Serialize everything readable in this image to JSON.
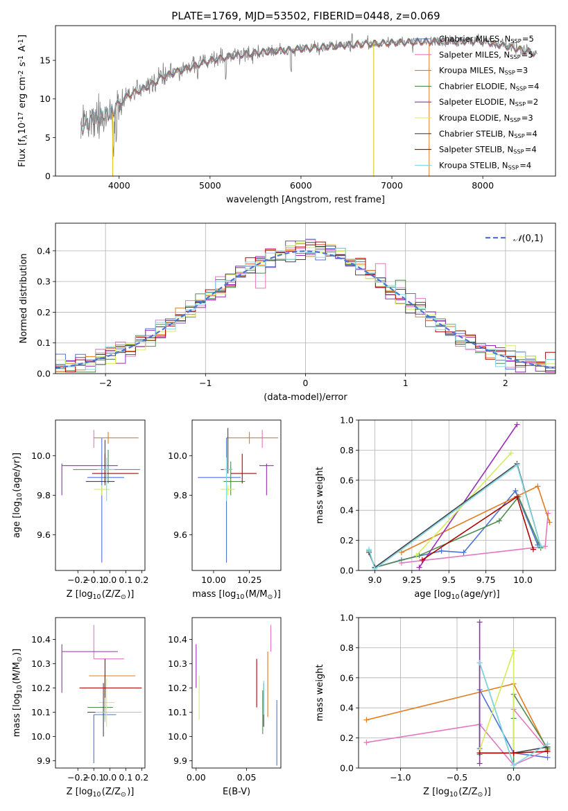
{
  "figure": {
    "title": "PLATE=1769, MJD=53502, FIBERID=0448, z=0.069"
  },
  "models": [
    {
      "name": "Chabrier MILES, N$_{SSP}$=5",
      "color": "#4c72d6"
    },
    {
      "name": "Salpeter MILES, N$_{SSP}$=5",
      "color": "#e377c2"
    },
    {
      "name": "Kroupa MILES, N$_{SSP}$=3",
      "color": "#e07b1f"
    },
    {
      "name": "Chabrier ELODIE, N$_{SSP}$=4",
      "color": "#4f8a4f"
    },
    {
      "name": "Salpeter ELODIE, N$_{SSP}$=2",
      "color": "#9b2ab5"
    },
    {
      "name": "Kroupa ELODIE, N$_{SSP}$=3",
      "color": "#d4ec5a"
    },
    {
      "name": "Chabrier STELIB, N$_{SSP}$=4",
      "color": "#444444"
    },
    {
      "name": "Salpeter STELIB, N$_{SSP}$=4",
      "color": "#b00000"
    },
    {
      "name": "Kroupa STELIB, N$_{SSP}$=4",
      "color": "#7fd7e6"
    }
  ],
  "chart_data": [
    {
      "id": "spectrum",
      "type": "line",
      "xlabel": "wavelength [Angstrom, rest frame]",
      "ylabel": "Flux [f$_\\lambda$10$^{-17}$ erg cm$^{-2}$ s$^{-1}$ A$^{-1}$]",
      "xlim": [
        3300,
        8800
      ],
      "ylim": [
        0,
        19.5
      ],
      "xticks": [
        4000,
        5000,
        6000,
        7000,
        8000
      ],
      "yticks": [
        0,
        5,
        10,
        15
      ],
      "continuum": [
        [
          3580,
          6.0
        ],
        [
          3700,
          7.5
        ],
        [
          3900,
          8.0
        ],
        [
          3950,
          8.8
        ],
        [
          4100,
          10.5
        ],
        [
          4300,
          11.5
        ],
        [
          4500,
          13.0
        ],
        [
          4800,
          14.2
        ],
        [
          5000,
          15.0
        ],
        [
          5200,
          15.5
        ],
        [
          5500,
          16.0
        ],
        [
          6000,
          16.5
        ],
        [
          6500,
          17.0
        ],
        [
          7000,
          17.3
        ],
        [
          7500,
          17.5
        ],
        [
          8000,
          17.5
        ],
        [
          8500,
          16.2
        ],
        [
          8600,
          15.8
        ]
      ],
      "grid": false
    },
    {
      "id": "residuals",
      "type": "histogram",
      "xlabel": "(data-model)/error",
      "ylabel": "Normed distribution",
      "xlim": [
        -2.5,
        2.5
      ],
      "ylim": [
        0,
        0.49
      ],
      "xticks": [
        -2,
        -1,
        0,
        1,
        2
      ],
      "yticks": [
        0.0,
        0.1,
        0.2,
        0.3,
        0.4
      ],
      "reference": {
        "name": "$\\mathcal{N}(0,1)$",
        "mean": 0,
        "sigma": 1,
        "color": "#4c72d6"
      },
      "bin_width": 0.1,
      "legend": "upper right",
      "grid": true
    },
    {
      "id": "age_vs_Z",
      "type": "errorbar",
      "xlabel": "Z [log$_{10}$(Z/Z$_\\odot$)]",
      "ylabel": "age  [log$_{10}$(age/yr)]",
      "xlim": [
        -0.34,
        0.22
      ],
      "ylim": [
        9.42,
        10.18
      ],
      "xticks": [
        -0.2,
        -0.1,
        0.0,
        0.1,
        0.2
      ],
      "yticks": [
        9.6,
        9.8,
        10.0
      ],
      "points": [
        {
          "x": -0.05,
          "y": 9.89,
          "xerr": [
            0.09,
            0.14
          ],
          "yerr": [
            0.43,
            0.2
          ]
        },
        {
          "x": -0.1,
          "y": 10.09,
          "xerr": [
            0,
            0
          ],
          "yerr": [
            0.05,
            0.04
          ]
        },
        {
          "x": -0.01,
          "y": 10.09,
          "xerr": [
            0.09,
            0.19
          ],
          "yerr": [
            0.03,
            0.03
          ]
        },
        {
          "x": -0.01,
          "y": 9.93,
          "xerr": [
            0.22,
            0.2
          ],
          "yerr": [
            0.07,
            0.1
          ]
        },
        {
          "x": -0.3,
          "y": 9.95,
          "xerr": [
            0,
            0.35
          ],
          "yerr": [
            0.15,
            0.01
          ]
        },
        {
          "x": -0.05,
          "y": 9.83,
          "xerr": [
            0.05,
            0.05
          ],
          "yerr": [
            0.03,
            0.02
          ]
        },
        {
          "x": -0.03,
          "y": 9.87,
          "xerr": [
            0.12,
            0.06
          ],
          "yerr": [
            0.02,
            0.21
          ]
        },
        {
          "x": -0.03,
          "y": 9.91,
          "xerr": [
            0.08,
            0.21
          ],
          "yerr": [
            0.05,
            0.1
          ]
        },
        {
          "x": -0.02,
          "y": 9.93,
          "xerr": [
            0.06,
            0.05
          ],
          "yerr": [
            0.16,
            0.06
          ]
        }
      ]
    },
    {
      "id": "age_vs_mass",
      "type": "errorbar",
      "xlabel": "mass [log$_{10}$(M/M$_\\odot$)]",
      "ylabel": "",
      "xlim": [
        9.85,
        10.47
      ],
      "ylim": [
        9.42,
        10.18
      ],
      "xticks": [
        10.0,
        10.25
      ],
      "yticks": [
        9.6,
        9.8,
        10.0
      ],
      "points": [
        {
          "x": 10.09,
          "y": 9.89,
          "xerr": [
            0.2,
            0.1
          ],
          "yerr": [
            0.43,
            0.2
          ]
        },
        {
          "x": 10.34,
          "y": 10.09,
          "xerr": [
            0,
            0
          ],
          "yerr": [
            0.05,
            0.04
          ]
        },
        {
          "x": 10.25,
          "y": 10.09,
          "xerr": [
            0.16,
            0.2
          ],
          "yerr": [
            0.03,
            0.03
          ]
        },
        {
          "x": 10.12,
          "y": 9.87,
          "xerr": [
            0.05,
            0.1
          ],
          "yerr": [
            0.07,
            0.1
          ]
        },
        {
          "x": 10.37,
          "y": 9.95,
          "xerr": [
            0.05,
            0.05
          ],
          "yerr": [
            0.15,
            0.01
          ]
        },
        {
          "x": 10.1,
          "y": 9.83,
          "xerr": [
            0.05,
            0.05
          ],
          "yerr": [
            0.03,
            0.02
          ]
        },
        {
          "x": 10.1,
          "y": 9.93,
          "xerr": [
            0.05,
            0.03
          ],
          "yerr": [
            0.02,
            0.21
          ]
        },
        {
          "x": 10.2,
          "y": 9.91,
          "xerr": [
            0.08,
            0.1
          ],
          "yerr": [
            0.05,
            0.1
          ]
        },
        {
          "x": 10.09,
          "y": 9.93,
          "xerr": [
            0.02,
            0.04
          ],
          "yerr": [
            0.16,
            0.06
          ]
        }
      ]
    },
    {
      "id": "massweight_vs_age",
      "type": "line",
      "xlabel": "age  [log$_{10}$(age/yr)]",
      "ylabel": "mass weight",
      "xlim": [
        8.89,
        10.22
      ],
      "ylim": [
        0,
        1.0
      ],
      "xticks": [
        9.0,
        9.25,
        9.5,
        9.75,
        10.0
      ],
      "yticks": [
        0.0,
        0.2,
        0.4,
        0.6,
        0.8,
        1.0
      ],
      "series": [
        {
          "values": [
            [
              9.0,
              0.02
            ],
            [
              9.18,
              0.07
            ],
            [
              9.45,
              0.13
            ],
            [
              9.6,
              0.12
            ],
            [
              9.95,
              0.53
            ],
            [
              10.1,
              0.17
            ]
          ]
        },
        {
          "values": [
            [
              9.18,
              0.05
            ],
            [
              10.15,
              0.16
            ],
            [
              10.17,
              0.38
            ]
          ]
        },
        {
          "values": [
            [
              9.18,
              0.12
            ],
            [
              10.1,
              0.56
            ],
            [
              10.18,
              0.32
            ]
          ]
        },
        {
          "values": [
            [
              8.96,
              0.13
            ],
            [
              9.0,
              0.02
            ],
            [
              9.3,
              0.1
            ],
            [
              9.84,
              0.33
            ],
            [
              9.97,
              0.49
            ],
            [
              10.12,
              0.15
            ]
          ]
        },
        {
          "values": [
            [
              9.3,
              0.02
            ],
            [
              9.96,
              0.97
            ]
          ]
        },
        {
          "values": [
            [
              9.28,
              0.1
            ],
            [
              9.92,
              0.78
            ]
          ]
        },
        {
          "values": [
            [
              8.96,
              0.12
            ],
            [
              9.0,
              0.02
            ],
            [
              9.96,
              0.71
            ],
            [
              10.12,
              0.16
            ]
          ]
        },
        {
          "values": [
            [
              9.32,
              0.07
            ],
            [
              9.96,
              0.49
            ],
            [
              10.07,
              0.14
            ]
          ]
        },
        {
          "values": [
            [
              8.96,
              0.14
            ],
            [
              9.0,
              0.01
            ],
            [
              9.96,
              0.7
            ],
            [
              10.12,
              0.16
            ]
          ]
        }
      ],
      "grid": true
    },
    {
      "id": "mass_vs_Z",
      "type": "errorbar",
      "xlabel": "Z [log$_{10}$(Z/Z$_\\odot$)]",
      "ylabel": "mass [log$_{10}$(M/M$_\\odot$)]",
      "xlim": [
        -0.34,
        0.22
      ],
      "ylim": [
        9.87,
        10.49
      ],
      "xticks": [
        -0.2,
        -0.1,
        0.0,
        0.1,
        0.2
      ],
      "yticks": [
        9.9,
        10.0,
        10.1,
        10.2,
        10.3,
        10.4
      ],
      "points": [
        {
          "x": -0.1,
          "y": 10.09,
          "xerr": [
            0,
            0.14
          ],
          "yerr": [
            0.2,
            0.0
          ]
        },
        {
          "x": -0.1,
          "y": 10.32,
          "xerr": [
            0.0,
            0.19
          ],
          "yerr": [
            0.0,
            0.14
          ]
        },
        {
          "x": -0.03,
          "y": 10.25,
          "xerr": [
            0.1,
            0.19
          ],
          "yerr": [
            0.14,
            0.0
          ]
        },
        {
          "x": -0.03,
          "y": 10.12,
          "xerr": [
            0.11,
            0.05
          ],
          "yerr": [
            0.05,
            0.1
          ]
        },
        {
          "x": -0.3,
          "y": 10.35,
          "xerr": [
            0.0,
            0.35
          ],
          "yerr": [
            0.17,
            0.03
          ]
        },
        {
          "x": -0.02,
          "y": 10.14,
          "xerr": [
            0.05,
            0.05
          ],
          "yerr": [
            0.1,
            0.1
          ]
        },
        {
          "x": -0.04,
          "y": 10.1,
          "xerr": [
            0.1,
            0.06
          ],
          "yerr": [
            0.1,
            0.12
          ]
        },
        {
          "x": -0.03,
          "y": 10.2,
          "xerr": [
            0.16,
            0.23
          ],
          "yerr": [
            0.1,
            0.12
          ]
        },
        {
          "x": -0.03,
          "y": 10.1,
          "xerr": [
            0.06,
            0.23
          ],
          "yerr": [
            0.04,
            0.06
          ]
        }
      ]
    },
    {
      "id": "mass_vs_ebv",
      "type": "errorbar",
      "xlabel": "E(B-V)",
      "ylabel": "",
      "xlim": [
        -0.004,
        0.084
      ],
      "ylim": [
        9.87,
        10.49
      ],
      "xticks": [
        0.0,
        0.05
      ],
      "yticks": [
        9.9,
        10.0,
        10.1,
        10.2,
        10.3,
        10.4
      ],
      "points": [
        {
          "x": 0.08,
          "y": 10.0,
          "xerr": [
            0,
            0
          ],
          "yerr": [
            0.12,
            0.15
          ]
        },
        {
          "x": 0.074,
          "y": 10.35,
          "xerr": [
            0,
            0
          ],
          "yerr": [
            0.0,
            0.11
          ]
        },
        {
          "x": 0.071,
          "y": 10.25,
          "xerr": [
            0,
            0
          ],
          "yerr": [
            0.17,
            0.1
          ]
        },
        {
          "x": 0.066,
          "y": 10.12,
          "xerr": [
            0,
            0
          ],
          "yerr": [
            0.11,
            0.07
          ]
        },
        {
          "x": 0.0,
          "y": 10.3,
          "xerr": [
            0,
            0
          ],
          "yerr": [
            0.1,
            0.08
          ]
        },
        {
          "x": 0.003,
          "y": 10.15,
          "xerr": [
            0,
            0
          ],
          "yerr": [
            0.08,
            0.1
          ]
        },
        {
          "x": 0.067,
          "y": 10.1,
          "xerr": [
            0,
            0
          ],
          "yerr": [
            0.06,
            0.12
          ]
        },
        {
          "x": 0.06,
          "y": 10.2,
          "xerr": [
            0,
            0
          ],
          "yerr": [
            0.08,
            0.12
          ]
        },
        {
          "x": 0.067,
          "y": 10.15,
          "xerr": [
            0,
            0
          ],
          "yerr": [
            0.06,
            0.08
          ]
        }
      ]
    },
    {
      "id": "massweight_vs_Z",
      "type": "line",
      "xlabel": "Z [log$_{10}$(Z/Z$_\\odot$)]",
      "ylabel": "mass weight",
      "xlim": [
        -1.37,
        0.37
      ],
      "ylim": [
        0,
        1.0
      ],
      "xticks": [
        -1.0,
        -0.5,
        0.0
      ],
      "yticks": [
        0.0,
        0.2,
        0.4,
        0.6,
        0.8,
        1.0
      ],
      "series": [
        {
          "values": [
            [
              -0.3,
              0.13
            ],
            [
              -0.3,
              0.52
            ],
            [
              0.0,
              0.1
            ],
            [
              0.3,
              0.07
            ]
          ]
        },
        {
          "values": [
            [
              -1.3,
              0.17
            ],
            [
              -0.3,
              0.29
            ],
            [
              0.0,
              0.02
            ],
            [
              0.3,
              0.12
            ],
            [
              0.0,
              0.39
            ]
          ]
        },
        {
          "values": [
            [
              -1.3,
              0.32
            ],
            [
              0.0,
              0.56
            ],
            [
              0.3,
              0.12
            ]
          ]
        },
        {
          "values": [
            [
              -0.3,
              0.09
            ],
            [
              -0.3,
              0.7
            ],
            [
              0.0,
              0.02
            ],
            [
              0.0,
              0.33
            ],
            [
              0.0,
              0.49
            ],
            [
              0.3,
              0.13
            ]
          ]
        },
        {
          "values": [
            [
              -0.3,
              0.03
            ],
            [
              -0.3,
              0.97
            ]
          ]
        },
        {
          "values": [
            [
              -0.3,
              0.12
            ],
            [
              0.0,
              0.78
            ],
            [
              0.0,
              0.1
            ]
          ]
        },
        {
          "values": [
            [
              -0.3,
              0.1
            ],
            [
              0.0,
              0.1
            ],
            [
              0.3,
              0.14
            ]
          ]
        },
        {
          "values": [
            [
              -0.3,
              0.1
            ],
            [
              0.0,
              0.1
            ],
            [
              0.3,
              0.11
            ]
          ]
        },
        {
          "values": [
            [
              -0.3,
              0.7
            ],
            [
              0.0,
              0.02
            ],
            [
              0.3,
              0.16
            ]
          ]
        }
      ],
      "grid": true
    }
  ]
}
